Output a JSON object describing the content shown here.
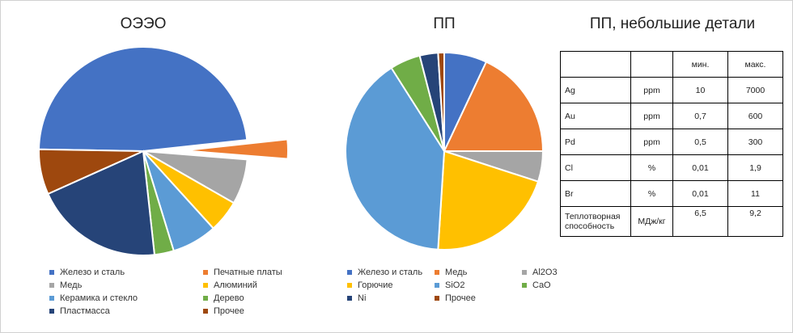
{
  "chart_data": [
    {
      "type": "pie",
      "title": "ОЭЭО",
      "categories": [
        "Железо и сталь",
        "Печатные платы",
        "Медь",
        "Алюминий",
        "Керамика и стекло",
        "Дерево",
        "Пластмасса",
        "Прочее"
      ],
      "values": [
        48,
        3,
        7,
        5,
        7,
        3,
        20,
        7
      ],
      "colors": [
        "#4472C4",
        "#ED7D31",
        "#A5A5A5",
        "#FFC000",
        "#5B9BD5",
        "#70AD47",
        "#264478",
        "#9E480E"
      ],
      "exploded": [
        "Печатные платы"
      ],
      "legend_position": "bottom"
    },
    {
      "type": "pie",
      "title": "ПП",
      "categories": [
        "Железо и сталь",
        "Медь",
        "Al2O3",
        "Горючие",
        "SiO2",
        "CaO",
        "Ni",
        "Прочее"
      ],
      "values": [
        7,
        18,
        5,
        21,
        40,
        5,
        3,
        1
      ],
      "colors": [
        "#4472C4",
        "#ED7D31",
        "#A5A5A5",
        "#FFC000",
        "#5B9BD5",
        "#70AD47",
        "#264478",
        "#9E480E"
      ],
      "legend_position": "bottom"
    },
    {
      "type": "table",
      "title": "ПП, небольшие детали",
      "columns": [
        "",
        "",
        "мин.",
        "макс."
      ],
      "rows": [
        [
          "Ag",
          "ppm",
          "10",
          "7000"
        ],
        [
          "Au",
          "ppm",
          "0,7",
          "600"
        ],
        [
          "Pd",
          "ppm",
          "0,5",
          "300"
        ],
        [
          "Cl",
          "%",
          "0,01",
          "1,9"
        ],
        [
          "Br",
          "%",
          "0,01",
          "11"
        ],
        [
          "Теплотворная способность",
          "МДж/кг",
          "6,5",
          "9,2"
        ]
      ]
    }
  ]
}
